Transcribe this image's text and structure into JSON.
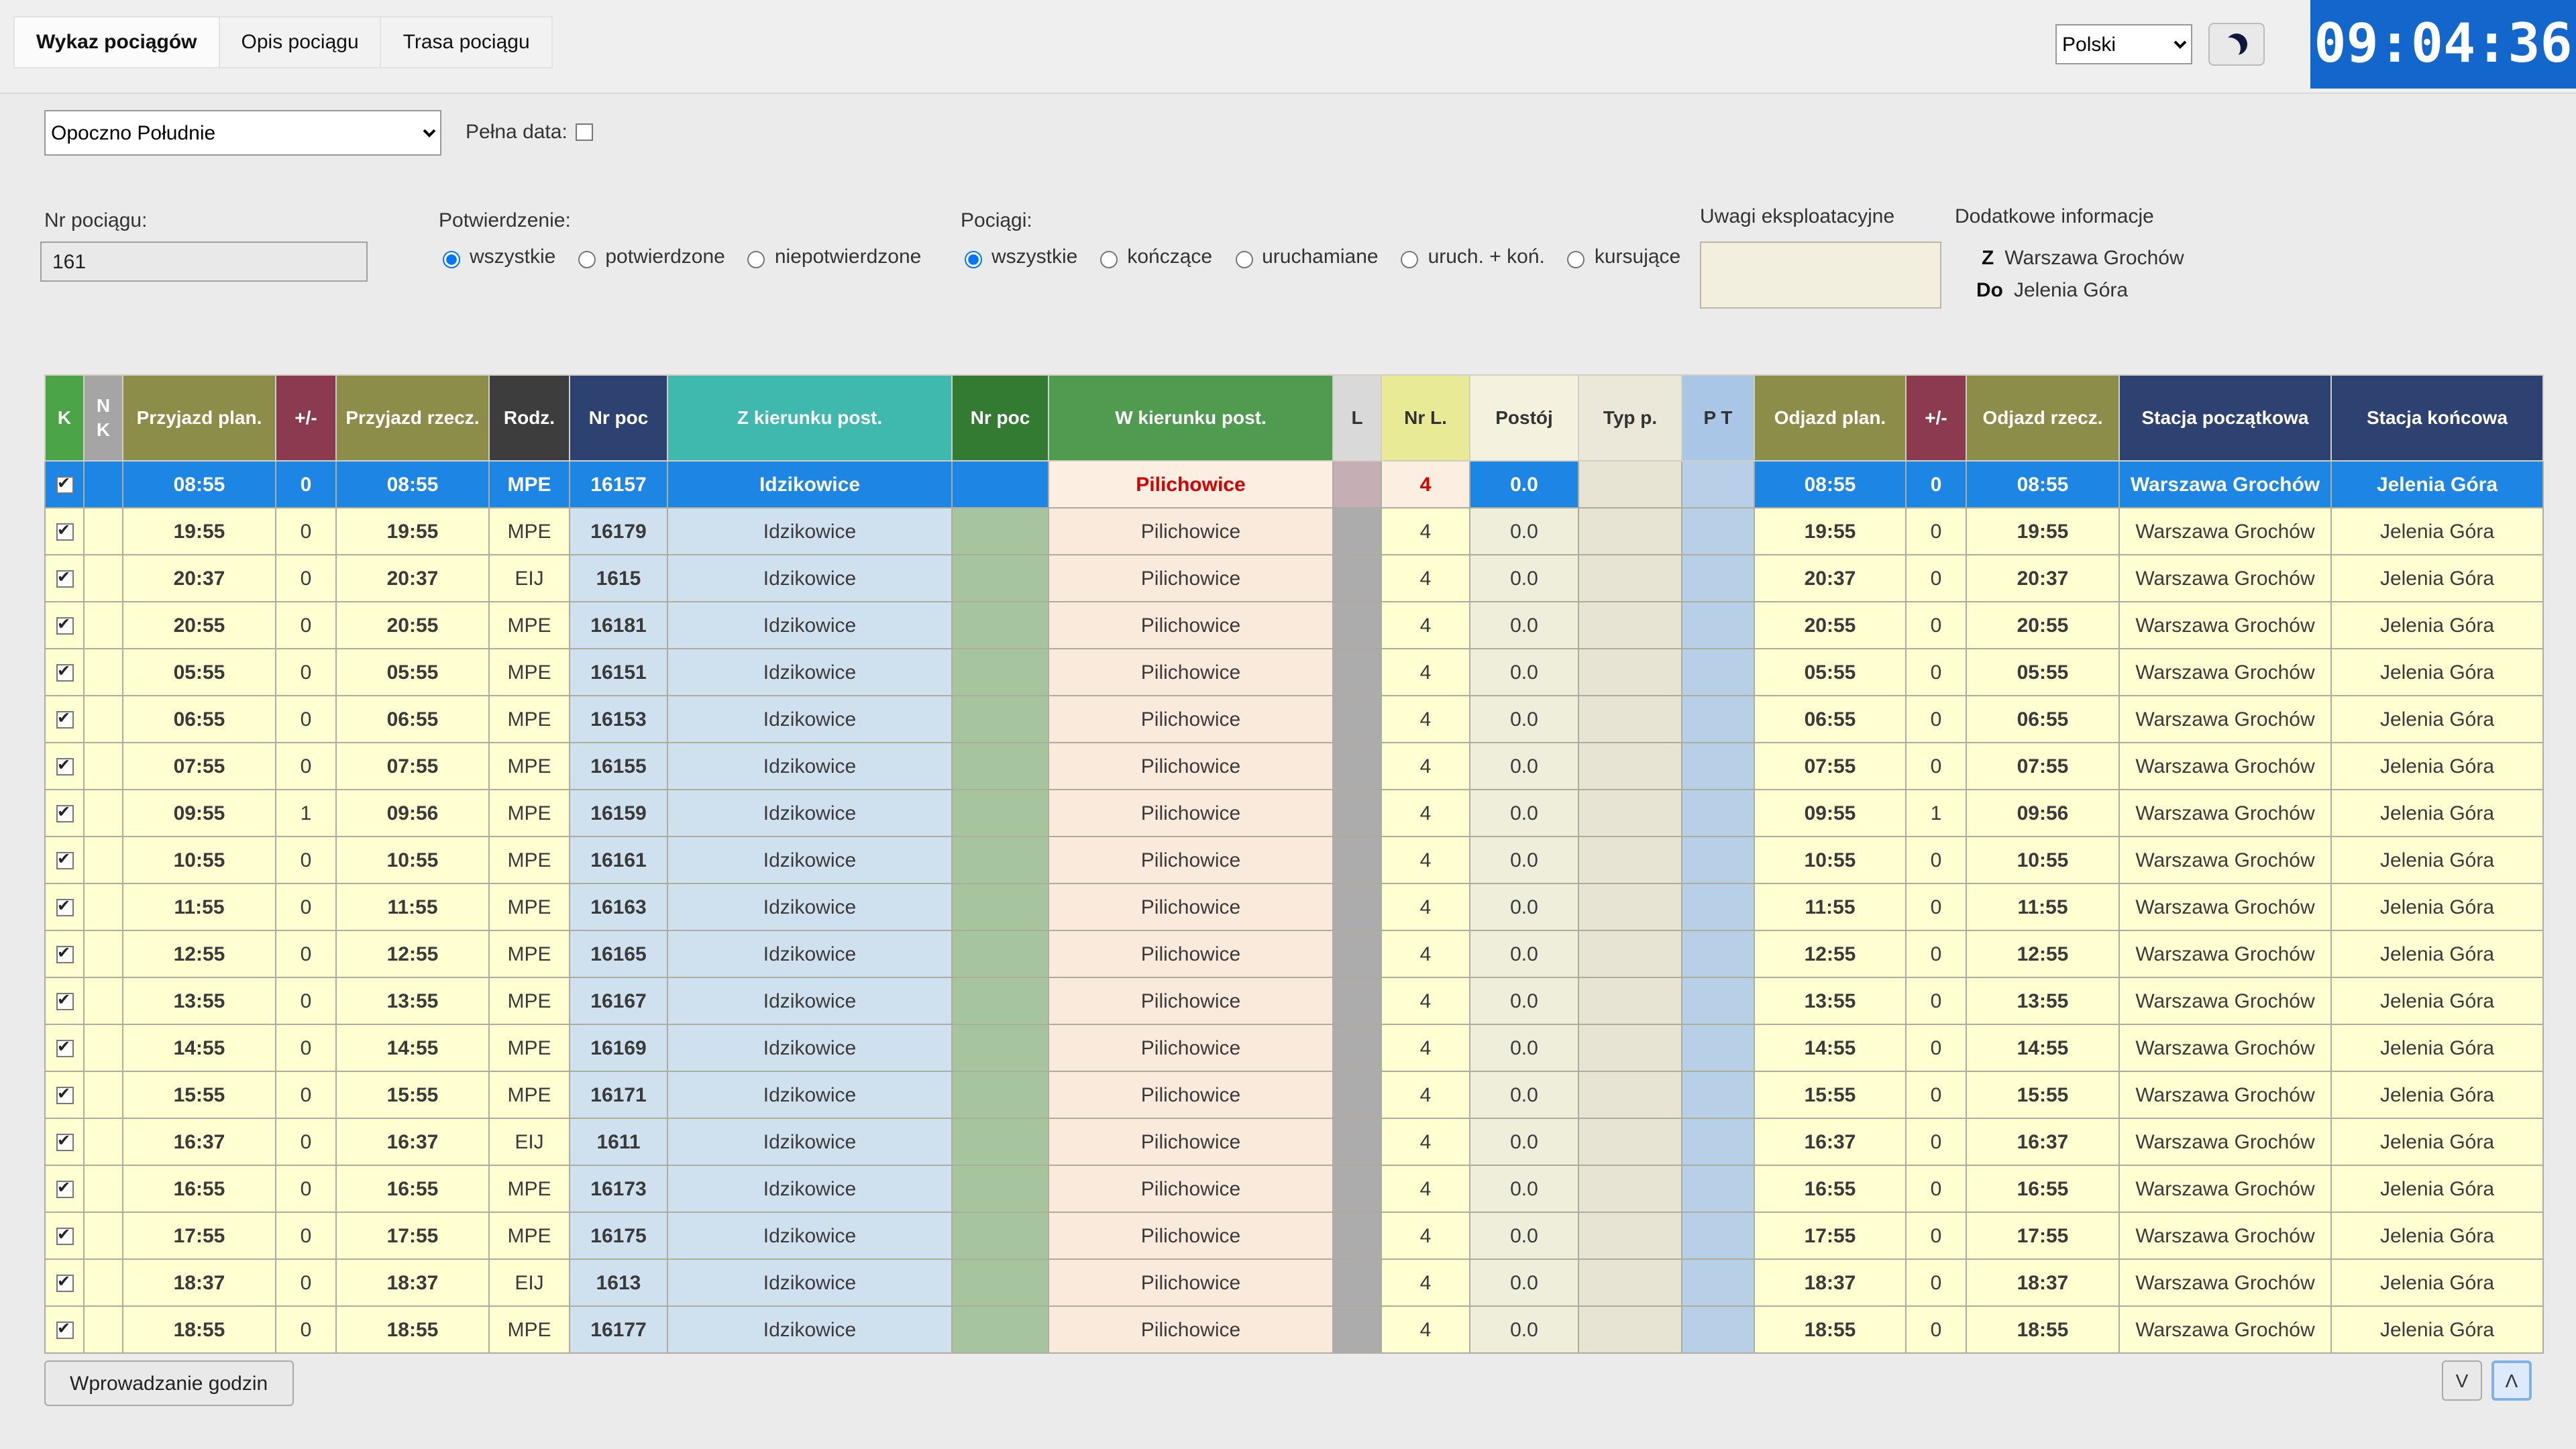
{
  "tabs": [
    "Wykaz pociągów",
    "Opis pociągu",
    "Trasa pociągu"
  ],
  "topbar": {
    "language": "Polski",
    "clock": "09:04:36"
  },
  "station_bar": {
    "station": "Opoczno Południe",
    "full_date_label": "Pełna data:"
  },
  "filters": {
    "train_no_label": "Nr pociągu:",
    "train_no_value": "161",
    "confirmation_label": "Potwierdzenie:",
    "confirmation_options": [
      "wszystkie",
      "potwierdzone",
      "niepotwierdzone"
    ],
    "confirmation_selected": "wszystkie",
    "trains_label": "Pociągi:",
    "trains_options": [
      "wszystkie",
      "kończące",
      "uruchamiane",
      "uruch. + koń.",
      "kursujące"
    ],
    "trains_selected": "wszystkie",
    "remarks_label": "Uwagi eksploatacyjne",
    "additional_info_label": "Dodatkowe informacje",
    "from_label": "Z",
    "from_value": "Warszawa Grochów",
    "to_label": "Do",
    "to_value": "Jelenia Góra"
  },
  "table": {
    "headers": [
      "K",
      "N K",
      "Przyjazd plan.",
      "+/-",
      "Przyjazd rzecz.",
      "Rodz.",
      "Nr poc",
      "Z kierunku post.",
      "Nr poc",
      "W kierunku post.",
      "L",
      "Nr L.",
      "Postój",
      "Typ p.",
      "P T",
      "Odjazd plan.",
      "+/-",
      "Odjazd rzecz.",
      "Stacja początkowa",
      "Stacja końcowa"
    ],
    "rows": [
      {
        "selected": true,
        "arr_plan": "08:55",
        "arr_diff": "0",
        "arr_real": "08:55",
        "rodz": "MPE",
        "nr1": "16157",
        "z_kier": "Idzikowice",
        "nr2": "",
        "w_kier": "Pilichowice",
        "l": "",
        "nr_l": "4",
        "postoj": "0.0",
        "typ": "",
        "pt": "",
        "odj_plan": "08:55",
        "odj_diff": "0",
        "odj_real": "08:55",
        "st_start": "Warszawa Grochów",
        "st_end": "Jelenia Góra"
      },
      {
        "selected": false,
        "arr_plan": "19:55",
        "arr_diff": "0",
        "arr_real": "19:55",
        "rodz": "MPE",
        "nr1": "16179",
        "z_kier": "Idzikowice",
        "nr2": "",
        "w_kier": "Pilichowice",
        "l": "",
        "nr_l": "4",
        "postoj": "0.0",
        "typ": "",
        "pt": "",
        "odj_plan": "19:55",
        "odj_diff": "0",
        "odj_real": "19:55",
        "st_start": "Warszawa Grochów",
        "st_end": "Jelenia Góra"
      },
      {
        "selected": false,
        "arr_plan": "20:37",
        "arr_diff": "0",
        "arr_real": "20:37",
        "rodz": "EIJ",
        "nr1": "1615",
        "z_kier": "Idzikowice",
        "nr2": "",
        "w_kier": "Pilichowice",
        "l": "",
        "nr_l": "4",
        "postoj": "0.0",
        "typ": "",
        "pt": "",
        "odj_plan": "20:37",
        "odj_diff": "0",
        "odj_real": "20:37",
        "st_start": "Warszawa Grochów",
        "st_end": "Jelenia Góra"
      },
      {
        "selected": false,
        "arr_plan": "20:55",
        "arr_diff": "0",
        "arr_real": "20:55",
        "rodz": "MPE",
        "nr1": "16181",
        "z_kier": "Idzikowice",
        "nr2": "",
        "w_kier": "Pilichowice",
        "l": "",
        "nr_l": "4",
        "postoj": "0.0",
        "typ": "",
        "pt": "",
        "odj_plan": "20:55",
        "odj_diff": "0",
        "odj_real": "20:55",
        "st_start": "Warszawa Grochów",
        "st_end": "Jelenia Góra"
      },
      {
        "selected": false,
        "arr_plan": "05:55",
        "arr_diff": "0",
        "arr_real": "05:55",
        "rodz": "MPE",
        "nr1": "16151",
        "z_kier": "Idzikowice",
        "nr2": "",
        "w_kier": "Pilichowice",
        "l": "",
        "nr_l": "4",
        "postoj": "0.0",
        "typ": "",
        "pt": "",
        "odj_plan": "05:55",
        "odj_diff": "0",
        "odj_real": "05:55",
        "st_start": "Warszawa Grochów",
        "st_end": "Jelenia Góra"
      },
      {
        "selected": false,
        "arr_plan": "06:55",
        "arr_diff": "0",
        "arr_real": "06:55",
        "rodz": "MPE",
        "nr1": "16153",
        "z_kier": "Idzikowice",
        "nr2": "",
        "w_kier": "Pilichowice",
        "l": "",
        "nr_l": "4",
        "postoj": "0.0",
        "typ": "",
        "pt": "",
        "odj_plan": "06:55",
        "odj_diff": "0",
        "odj_real": "06:55",
        "st_start": "Warszawa Grochów",
        "st_end": "Jelenia Góra"
      },
      {
        "selected": false,
        "arr_plan": "07:55",
        "arr_diff": "0",
        "arr_real": "07:55",
        "rodz": "MPE",
        "nr1": "16155",
        "z_kier": "Idzikowice",
        "nr2": "",
        "w_kier": "Pilichowice",
        "l": "",
        "nr_l": "4",
        "postoj": "0.0",
        "typ": "",
        "pt": "",
        "odj_plan": "07:55",
        "odj_diff": "0",
        "odj_real": "07:55",
        "st_start": "Warszawa Grochów",
        "st_end": "Jelenia Góra"
      },
      {
        "selected": false,
        "arr_plan": "09:55",
        "arr_diff": "1",
        "arr_real": "09:56",
        "rodz": "MPE",
        "nr1": "16159",
        "z_kier": "Idzikowice",
        "nr2": "",
        "w_kier": "Pilichowice",
        "l": "",
        "nr_l": "4",
        "postoj": "0.0",
        "typ": "",
        "pt": "",
        "odj_plan": "09:55",
        "odj_diff": "1",
        "odj_real": "09:56",
        "st_start": "Warszawa Grochów",
        "st_end": "Jelenia Góra"
      },
      {
        "selected": false,
        "arr_plan": "10:55",
        "arr_diff": "0",
        "arr_real": "10:55",
        "rodz": "MPE",
        "nr1": "16161",
        "z_kier": "Idzikowice",
        "nr2": "",
        "w_kier": "Pilichowice",
        "l": "",
        "nr_l": "4",
        "postoj": "0.0",
        "typ": "",
        "pt": "",
        "odj_plan": "10:55",
        "odj_diff": "0",
        "odj_real": "10:55",
        "st_start": "Warszawa Grochów",
        "st_end": "Jelenia Góra"
      },
      {
        "selected": false,
        "arr_plan": "11:55",
        "arr_diff": "0",
        "arr_real": "11:55",
        "rodz": "MPE",
        "nr1": "16163",
        "z_kier": "Idzikowice",
        "nr2": "",
        "w_kier": "Pilichowice",
        "l": "",
        "nr_l": "4",
        "postoj": "0.0",
        "typ": "",
        "pt": "",
        "odj_plan": "11:55",
        "odj_diff": "0",
        "odj_real": "11:55",
        "st_start": "Warszawa Grochów",
        "st_end": "Jelenia Góra"
      },
      {
        "selected": false,
        "arr_plan": "12:55",
        "arr_diff": "0",
        "arr_real": "12:55",
        "rodz": "MPE",
        "nr1": "16165",
        "z_kier": "Idzikowice",
        "nr2": "",
        "w_kier": "Pilichowice",
        "l": "",
        "nr_l": "4",
        "postoj": "0.0",
        "typ": "",
        "pt": "",
        "odj_plan": "12:55",
        "odj_diff": "0",
        "odj_real": "12:55",
        "st_start": "Warszawa Grochów",
        "st_end": "Jelenia Góra"
      },
      {
        "selected": false,
        "arr_plan": "13:55",
        "arr_diff": "0",
        "arr_real": "13:55",
        "rodz": "MPE",
        "nr1": "16167",
        "z_kier": "Idzikowice",
        "nr2": "",
        "w_kier": "Pilichowice",
        "l": "",
        "nr_l": "4",
        "postoj": "0.0",
        "typ": "",
        "pt": "",
        "odj_plan": "13:55",
        "odj_diff": "0",
        "odj_real": "13:55",
        "st_start": "Warszawa Grochów",
        "st_end": "Jelenia Góra"
      },
      {
        "selected": false,
        "arr_plan": "14:55",
        "arr_diff": "0",
        "arr_real": "14:55",
        "rodz": "MPE",
        "nr1": "16169",
        "z_kier": "Idzikowice",
        "nr2": "",
        "w_kier": "Pilichowice",
        "l": "",
        "nr_l": "4",
        "postoj": "0.0",
        "typ": "",
        "pt": "",
        "odj_plan": "14:55",
        "odj_diff": "0",
        "odj_real": "14:55",
        "st_start": "Warszawa Grochów",
        "st_end": "Jelenia Góra"
      },
      {
        "selected": false,
        "arr_plan": "15:55",
        "arr_diff": "0",
        "arr_real": "15:55",
        "rodz": "MPE",
        "nr1": "16171",
        "z_kier": "Idzikowice",
        "nr2": "",
        "w_kier": "Pilichowice",
        "l": "",
        "nr_l": "4",
        "postoj": "0.0",
        "typ": "",
        "pt": "",
        "odj_plan": "15:55",
        "odj_diff": "0",
        "odj_real": "15:55",
        "st_start": "Warszawa Grochów",
        "st_end": "Jelenia Góra"
      },
      {
        "selected": false,
        "arr_plan": "16:37",
        "arr_diff": "0",
        "arr_real": "16:37",
        "rodz": "EIJ",
        "nr1": "1611",
        "z_kier": "Idzikowice",
        "nr2": "",
        "w_kier": "Pilichowice",
        "l": "",
        "nr_l": "4",
        "postoj": "0.0",
        "typ": "",
        "pt": "",
        "odj_plan": "16:37",
        "odj_diff": "0",
        "odj_real": "16:37",
        "st_start": "Warszawa Grochów",
        "st_end": "Jelenia Góra"
      },
      {
        "selected": false,
        "arr_plan": "16:55",
        "arr_diff": "0",
        "arr_real": "16:55",
        "rodz": "MPE",
        "nr1": "16173",
        "z_kier": "Idzikowice",
        "nr2": "",
        "w_kier": "Pilichowice",
        "l": "",
        "nr_l": "4",
        "postoj": "0.0",
        "typ": "",
        "pt": "",
        "odj_plan": "16:55",
        "odj_diff": "0",
        "odj_real": "16:55",
        "st_start": "Warszawa Grochów",
        "st_end": "Jelenia Góra"
      },
      {
        "selected": false,
        "arr_plan": "17:55",
        "arr_diff": "0",
        "arr_real": "17:55",
        "rodz": "MPE",
        "nr1": "16175",
        "z_kier": "Idzikowice",
        "nr2": "",
        "w_kier": "Pilichowice",
        "l": "",
        "nr_l": "4",
        "postoj": "0.0",
        "typ": "",
        "pt": "",
        "odj_plan": "17:55",
        "odj_diff": "0",
        "odj_real": "17:55",
        "st_start": "Warszawa Grochów",
        "st_end": "Jelenia Góra"
      },
      {
        "selected": false,
        "arr_plan": "18:37",
        "arr_diff": "0",
        "arr_real": "18:37",
        "rodz": "EIJ",
        "nr1": "1613",
        "z_kier": "Idzikowice",
        "nr2": "",
        "w_kier": "Pilichowice",
        "l": "",
        "nr_l": "4",
        "postoj": "0.0",
        "typ": "",
        "pt": "",
        "odj_plan": "18:37",
        "odj_diff": "0",
        "odj_real": "18:37",
        "st_start": "Warszawa Grochów",
        "st_end": "Jelenia Góra"
      },
      {
        "selected": false,
        "arr_plan": "18:55",
        "arr_diff": "0",
        "arr_real": "18:55",
        "rodz": "MPE",
        "nr1": "16177",
        "z_kier": "Idzikowice",
        "nr2": "",
        "w_kier": "Pilichowice",
        "l": "",
        "nr_l": "4",
        "postoj": "0.0",
        "typ": "",
        "pt": "",
        "odj_plan": "18:55",
        "odj_diff": "0",
        "odj_real": "18:55",
        "st_start": "Warszawa Grochów",
        "st_end": "Jelenia Góra"
      }
    ]
  },
  "footer": {
    "enter_times": "Wprowadzanie godzin",
    "scroll_down": "V",
    "scroll_up": "Λ"
  }
}
